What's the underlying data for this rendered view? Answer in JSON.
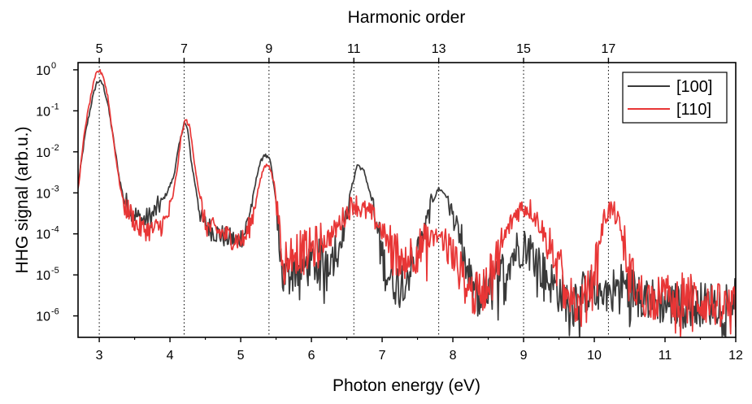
{
  "chart_data": {
    "type": "line",
    "xlabel": "Photon energy (eV)",
    "ylabel": "HHG signal (arb.u.)",
    "top_axis_label": "Harmonic order",
    "x_range": [
      2.7,
      12
    ],
    "y_range": [
      3e-07,
      1.5
    ],
    "y_scale": "log",
    "x_ticks": [
      "3",
      "4",
      "5",
      "6",
      "7",
      "8",
      "9",
      "10",
      "11",
      "12"
    ],
    "y_ticks": [
      {
        "base": "10",
        "exp": "0"
      },
      {
        "base": "10",
        "exp": "-1"
      },
      {
        "base": "10",
        "exp": "-2"
      },
      {
        "base": "10",
        "exp": "-3"
      },
      {
        "base": "10",
        "exp": "-4"
      },
      {
        "base": "10",
        "exp": "-5"
      },
      {
        "base": "10",
        "exp": "-6"
      }
    ],
    "harmonic_orders": [
      "5",
      "7",
      "9",
      "11",
      "13",
      "15",
      "17"
    ],
    "harmonic_energies": [
      3.0,
      4.2,
      5.4,
      6.6,
      7.8,
      9.0,
      10.2
    ],
    "legend_position": "top-right",
    "series": [
      {
        "name": "[100]",
        "color": "#3a3a3a",
        "points": [
          [
            2.7,
            0.0015
          ],
          [
            2.8,
            0.026
          ],
          [
            2.9,
            0.19
          ],
          [
            2.96,
            0.48
          ],
          [
            3.0,
            0.53
          ],
          [
            3.05,
            0.45
          ],
          [
            3.12,
            0.15
          ],
          [
            3.2,
            0.021
          ],
          [
            3.28,
            0.0025
          ],
          [
            3.35,
            0.00065
          ],
          [
            3.45,
            0.0004
          ],
          [
            3.55,
            0.00024
          ],
          [
            3.65,
            0.00022
          ],
          [
            3.75,
            0.00028
          ],
          [
            3.85,
            0.0005
          ],
          [
            3.95,
            0.00095
          ],
          [
            4.05,
            0.0024
          ],
          [
            4.12,
            0.012
          ],
          [
            4.2,
            0.053
          ],
          [
            4.25,
            0.035
          ],
          [
            4.3,
            0.006
          ],
          [
            4.38,
            0.0009
          ],
          [
            4.45,
            0.00021
          ],
          [
            4.6,
            0.00012
          ],
          [
            4.8,
            8e-05
          ],
          [
            4.95,
            6.8e-05
          ],
          [
            5.05,
            0.0001
          ],
          [
            5.15,
            0.00048
          ],
          [
            5.25,
            0.004
          ],
          [
            5.33,
            0.0088
          ],
          [
            5.42,
            0.006
          ],
          [
            5.5,
            0.0006
          ],
          [
            5.55,
            4.5e-05
          ],
          [
            5.6,
            8e-06
          ],
          [
            5.7,
            1.3e-05
          ],
          [
            5.9,
            1.6e-05
          ],
          [
            6.1,
            2.1e-05
          ],
          [
            6.3,
            3e-05
          ],
          [
            6.45,
            0.0001
          ],
          [
            6.55,
            0.001
          ],
          [
            6.65,
            0.005
          ],
          [
            6.75,
            0.0032
          ],
          [
            6.85,
            0.0007
          ],
          [
            6.95,
            7e-05
          ],
          [
            7.05,
            1.3e-05
          ],
          [
            7.2,
            6e-06
          ],
          [
            7.35,
            1e-05
          ],
          [
            7.5,
            3e-05
          ],
          [
            7.6,
            0.00012
          ],
          [
            7.7,
            0.00055
          ],
          [
            7.8,
            0.0013
          ],
          [
            7.9,
            0.0009
          ],
          [
            8.0,
            0.00028
          ],
          [
            8.1,
            8e-05
          ],
          [
            8.2,
            1e-05
          ],
          [
            8.35,
            3e-06
          ],
          [
            8.5,
            4e-06
          ],
          [
            8.65,
            8e-06
          ],
          [
            8.8,
            2.5e-05
          ],
          [
            9.0,
            6e-05
          ],
          [
            9.15,
            3e-05
          ],
          [
            9.3,
            1e-05
          ],
          [
            9.45,
            5e-06
          ],
          [
            9.6,
            2.5e-06
          ],
          [
            9.8,
            3.5e-06
          ],
          [
            10.0,
            4.5e-06
          ],
          [
            10.2,
            4e-06
          ],
          [
            10.4,
            6e-06
          ],
          [
            10.6,
            4e-06
          ],
          [
            10.8,
            2.5e-06
          ],
          [
            11.0,
            2e-06
          ],
          [
            11.3,
            1.8e-06
          ],
          [
            11.6,
            2e-06
          ],
          [
            12.0,
            2.4e-06
          ]
        ]
      },
      {
        "name": "[110]",
        "color": "#e83636",
        "points": [
          [
            2.7,
            0.0012
          ],
          [
            2.8,
            0.04
          ],
          [
            2.9,
            0.34
          ],
          [
            2.96,
            0.83
          ],
          [
            3.0,
            0.95
          ],
          [
            3.05,
            0.78
          ],
          [
            3.12,
            0.23
          ],
          [
            3.2,
            0.02
          ],
          [
            3.28,
            0.002
          ],
          [
            3.35,
            0.0005
          ],
          [
            3.45,
            0.0003
          ],
          [
            3.55,
            0.00014
          ],
          [
            3.65,
            0.00013
          ],
          [
            3.75,
            0.00012
          ],
          [
            3.85,
            0.00015
          ],
          [
            3.95,
            0.00022
          ],
          [
            4.02,
            0.0005
          ],
          [
            4.1,
            0.0035
          ],
          [
            4.16,
            0.025
          ],
          [
            4.22,
            0.063
          ],
          [
            4.28,
            0.04
          ],
          [
            4.35,
            0.005
          ],
          [
            4.42,
            0.0008
          ],
          [
            4.5,
            0.00016
          ],
          [
            4.7,
            0.00011
          ],
          [
            4.9,
            7.5e-05
          ],
          [
            5.05,
            7e-05
          ],
          [
            5.15,
            0.0002
          ],
          [
            5.25,
            0.0013
          ],
          [
            5.33,
            0.0043
          ],
          [
            5.4,
            0.005
          ],
          [
            5.48,
            0.0015
          ],
          [
            5.55,
            0.00012
          ],
          [
            5.6,
            2e-05
          ],
          [
            5.7,
            4e-05
          ],
          [
            5.9,
            3.5e-05
          ],
          [
            6.1,
            5e-05
          ],
          [
            6.3,
            0.0001
          ],
          [
            6.45,
            0.00025
          ],
          [
            6.6,
            0.0006
          ],
          [
            6.7,
            0.0004
          ],
          [
            6.85,
            0.0003
          ],
          [
            7.0,
            0.00012
          ],
          [
            7.15,
            4e-05
          ],
          [
            7.3,
            2.5e-05
          ],
          [
            7.5,
            4e-05
          ],
          [
            7.7,
            7e-05
          ],
          [
            7.8,
            9e-05
          ],
          [
            7.9,
            6e-05
          ],
          [
            8.05,
            1.8e-05
          ],
          [
            8.15,
            8e-06
          ],
          [
            8.3,
            3e-06
          ],
          [
            8.45,
            5e-06
          ],
          [
            8.6,
            2e-05
          ],
          [
            8.75,
            0.0001
          ],
          [
            8.9,
            0.00035
          ],
          [
            9.0,
            0.00046
          ],
          [
            9.1,
            0.0004
          ],
          [
            9.25,
            0.00015
          ],
          [
            9.4,
            3e-05
          ],
          [
            9.55,
            1e-05
          ],
          [
            9.65,
            3e-06
          ],
          [
            9.8,
            1.5e-06
          ],
          [
            9.95,
            5e-06
          ],
          [
            10.05,
            4e-05
          ],
          [
            10.15,
            0.00028
          ],
          [
            10.22,
            0.0004
          ],
          [
            10.3,
            0.0003
          ],
          [
            10.4,
            8e-05
          ],
          [
            10.5,
            1.5e-05
          ],
          [
            10.6,
            4e-06
          ],
          [
            10.8,
            2.5e-06
          ],
          [
            11.0,
            3e-06
          ],
          [
            11.3,
            3.5e-06
          ],
          [
            11.6,
            2e-06
          ],
          [
            12.0,
            1.5e-06
          ]
        ]
      }
    ]
  }
}
